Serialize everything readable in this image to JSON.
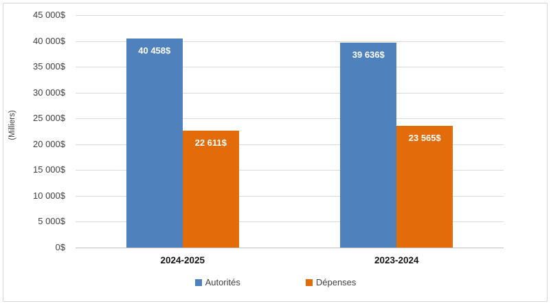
{
  "chart_data": {
    "type": "bar",
    "title": "",
    "categories": [
      "2024-2025",
      "2023-2024"
    ],
    "series": [
      {
        "name": "Autorités",
        "color": "#4F81BD",
        "values": [
          40458,
          39636
        ],
        "value_labels": [
          "40 458$",
          "39 636$"
        ]
      },
      {
        "name": "Dépenses",
        "color": "#E36C0A",
        "values": [
          22611,
          23565
        ],
        "value_labels": [
          "22 611$",
          "23 565$"
        ]
      }
    ],
    "xlabel": "",
    "ylabel": "(Milliers)",
    "ylim": [
      0,
      45000
    ],
    "ytick_step": 5000,
    "ytick_labels": [
      "0$",
      "5 000$",
      "10 000$",
      "15 000$",
      "20 000$",
      "25 000$",
      "30 000$",
      "35 000$",
      "40 000$",
      "45 000$"
    ],
    "grid": true,
    "legend_position": "bottom",
    "legend_entries": [
      "Autorités",
      "Dépenses"
    ]
  },
  "colors": {
    "series_autorites": "#4F81BD",
    "series_depenses": "#E36C0A",
    "gridline": "#D9D9D9",
    "axis_line": "#BFBFBF",
    "tick_text": "#404040",
    "category_text": "#141414",
    "data_label_text": "#FFFFFF",
    "frame_border": "#D6D6D6",
    "background": "#FFFFFF"
  }
}
